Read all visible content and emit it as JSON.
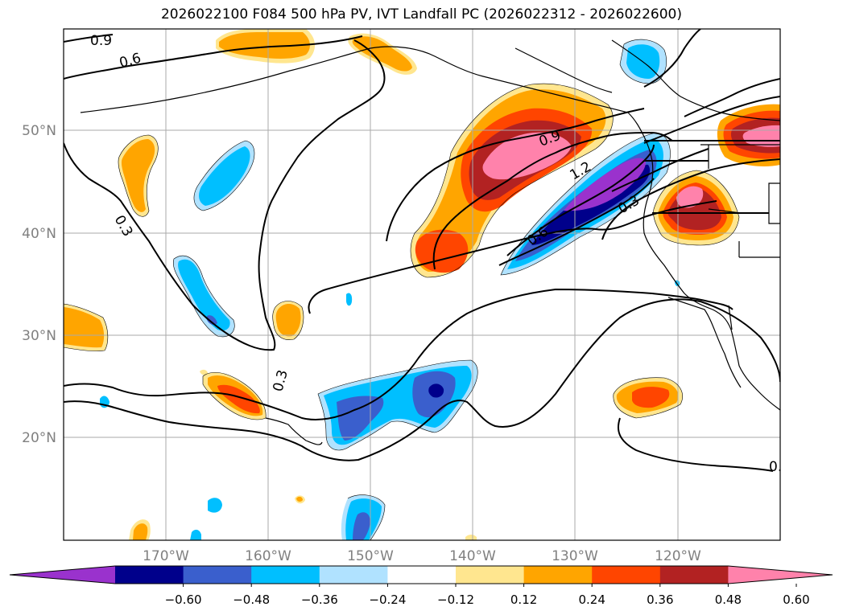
{
  "title": "2026022100 F084 500 hPa PV, IVT Landfall PC (2026022312 - 2026022600)",
  "map": {
    "lat_labels": [
      "50°N",
      "40°N",
      "30°N",
      "20°N"
    ],
    "lon_labels": [
      "170°W",
      "160°W",
      "150°W",
      "140°W",
      "130°W",
      "120°W"
    ],
    "contour_labels": [
      "0.9",
      "0.6",
      "0.3",
      "0.3",
      "0.9",
      "1.2",
      "0.6",
      "0.3",
      "0."
    ]
  },
  "colorbar": {
    "ticks": [
      "−0.60",
      "−0.48",
      "−0.36",
      "−0.24",
      "−0.12",
      "0.12",
      "0.24",
      "0.36",
      "0.48",
      "0.60"
    ],
    "colors": [
      "#9a32cd",
      "#00008b",
      "#3a5fcd",
      "#00bfff",
      "#b0e2ff",
      "#ffffff",
      "#ffe68f",
      "#ffa500",
      "#ff4500",
      "#b22222",
      "#ff82ab"
    ]
  }
}
